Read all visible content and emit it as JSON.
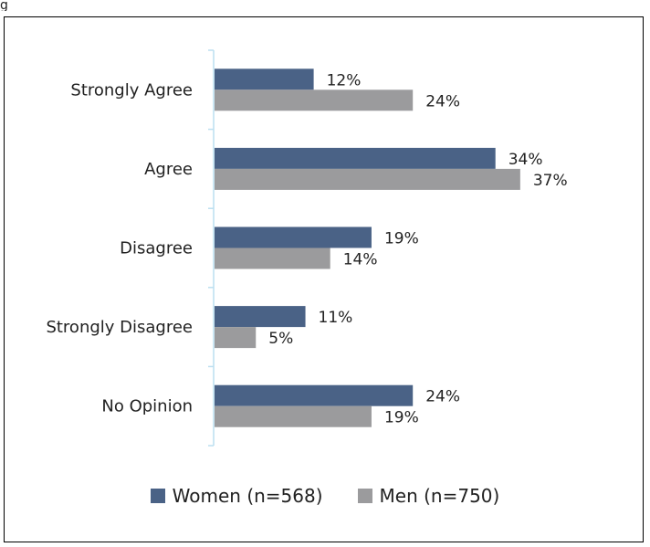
{
  "top_fragment": "g",
  "chart_data": {
    "type": "bar",
    "orientation": "horizontal",
    "categories": [
      "Strongly Agree",
      "Agree",
      "Disagree",
      "Strongly Disagree",
      "No Opinion"
    ],
    "series": [
      {
        "name": "Women (n=568)",
        "values": [
          12,
          34,
          19,
          11,
          24
        ],
        "labels": [
          "12%",
          "34%",
          "19%",
          "11%",
          "24%"
        ],
        "color": "#4a6286"
      },
      {
        "name": "Men (n=750)",
        "values": [
          24,
          37,
          14,
          5,
          19
        ],
        "labels": [
          "24%",
          "37%",
          "14%",
          "5%",
          "19%"
        ],
        "color": "#9b9b9d"
      }
    ],
    "xlim": [
      0,
      100
    ],
    "grid": false,
    "legend_position": "bottom",
    "axis_color": "#bcdff0"
  }
}
